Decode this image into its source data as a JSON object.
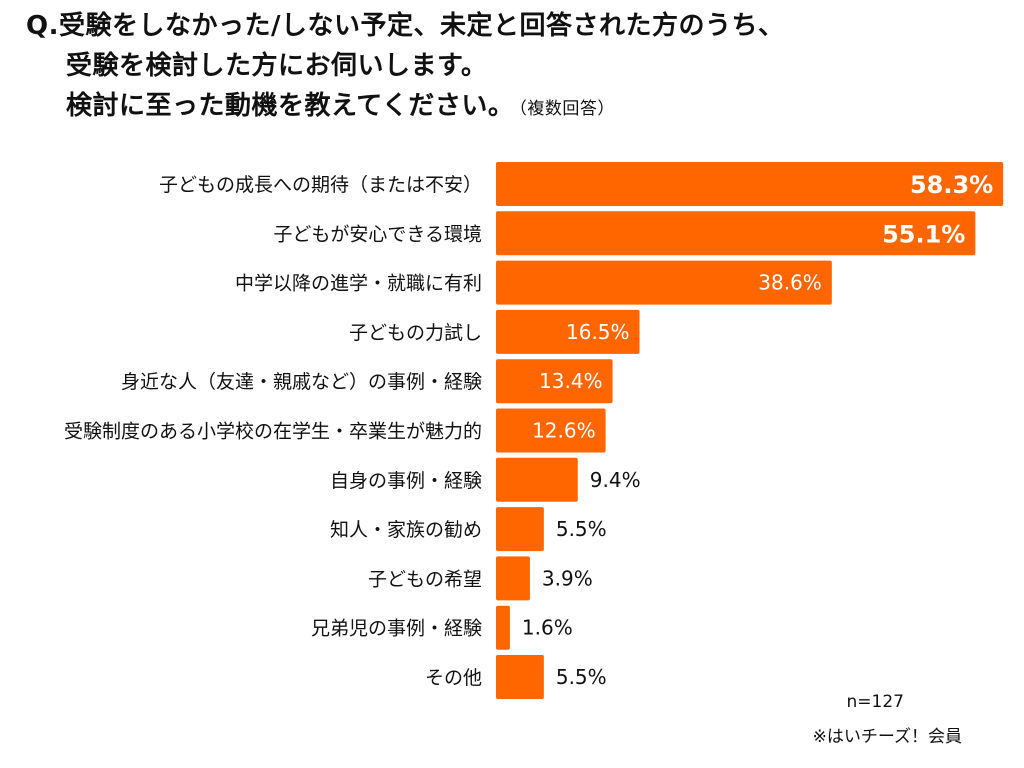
{
  "title": {
    "line1": "Q.受験をしなかった/しない予定、未定と回答された方のうち、",
    "line2": "受験を検討した方にお伺いします。",
    "line3": "検討に至った動機を教えてください。",
    "note": "（複数回答）"
  },
  "footer": {
    "sample": "n=127",
    "source": "※はいチーズ！会員"
  },
  "colors": {
    "bar": "#FF6600",
    "text_inside": "#ffffff",
    "text_outside": "#111111"
  },
  "chart_data": {
    "type": "bar",
    "orientation": "horizontal",
    "categories": [
      "子どもの成長への期待（または不安）",
      "子どもが安心できる環境",
      "中学以降の進学・就職に有利",
      "子どもの力試し",
      "身近な人（友達・親戚など）の事例・経験",
      "受験制度のある小学校の在学生・卒業生が魅力的",
      "自身の事例・経験",
      "知人・家族の勧め",
      "子どもの希望",
      "兄弟児の事例・経験",
      "その他"
    ],
    "values": [
      58.3,
      55.1,
      38.6,
      16.5,
      13.4,
      12.6,
      9.4,
      5.5,
      3.9,
      1.6,
      5.5
    ],
    "value_labels": [
      "58.3%",
      "55.1%",
      "38.6%",
      "16.5%",
      "13.4%",
      "12.6%",
      "9.4%",
      "5.5%",
      "3.9%",
      "1.6%",
      "5.5%"
    ],
    "xlim": [
      0,
      60
    ],
    "grid": false,
    "legend": "none"
  }
}
